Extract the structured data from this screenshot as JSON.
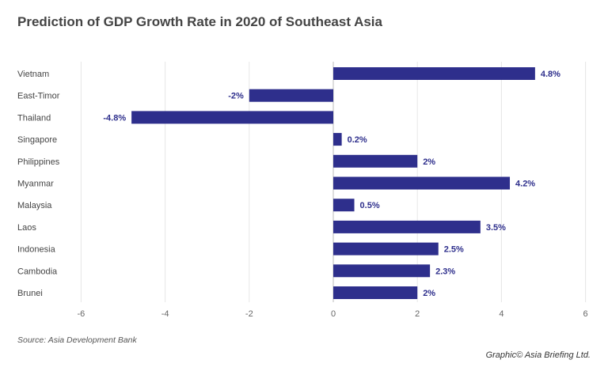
{
  "chart_data": {
    "type": "bar",
    "orientation": "horizontal",
    "title": "Prediction of GDP Growth Rate in 2020 of Southeast Asia",
    "categories": [
      "Vietnam",
      "East-Timor",
      "Thailand",
      "Singapore",
      "Philippines",
      "Myanmar",
      "Malaysia",
      "Laos",
      "Indonesia",
      "Cambodia",
      "Brunei"
    ],
    "values": [
      4.8,
      -2,
      -4.8,
      0.2,
      2,
      4.2,
      0.5,
      3.5,
      2.5,
      2.3,
      2
    ],
    "data_labels": [
      "4.8%",
      "-2%",
      "-4.8%",
      "0.2%",
      "2%",
      "4.2%",
      "0.5%",
      "3.5%",
      "2.5%",
      "2.3%",
      "2%"
    ],
    "xlim": [
      -6,
      6
    ],
    "xticks": [
      "-6",
      "-4",
      "-2",
      "0",
      "2",
      "4",
      "6"
    ],
    "grid": true,
    "bar_color": "#2e2f8c"
  },
  "source": "Source: Asia Development Bank",
  "credit": "Graphic© Asia Briefing Ltd."
}
